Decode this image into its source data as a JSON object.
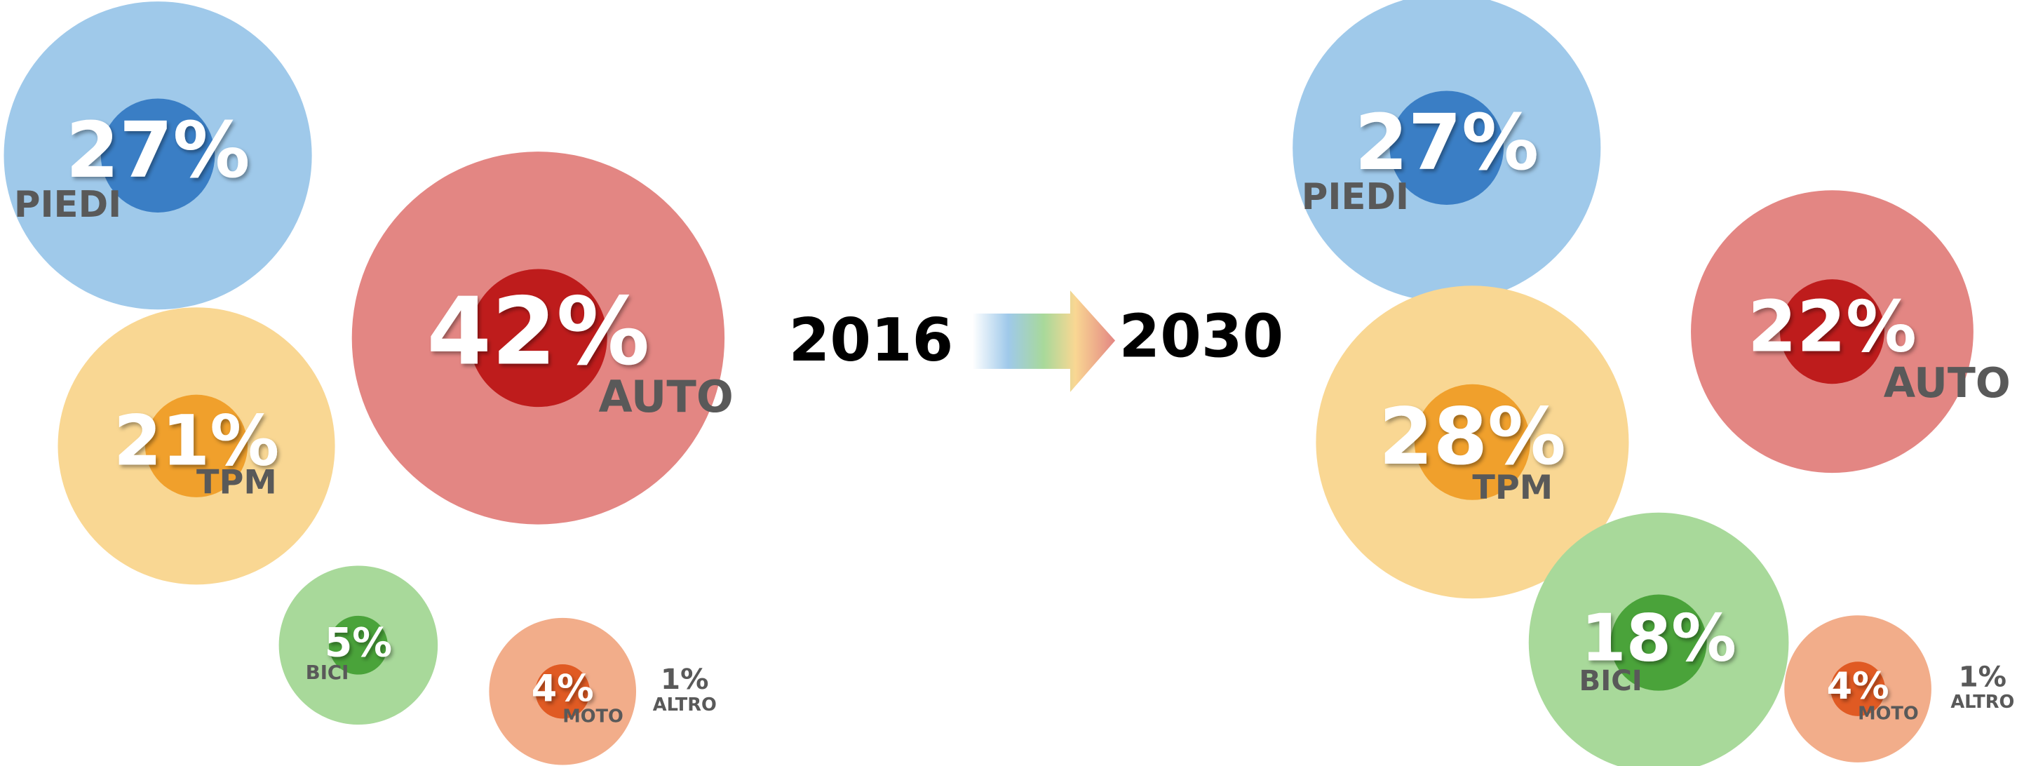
{
  "chart_data": [
    {
      "type": "bubble",
      "title": "2016",
      "categories": [
        "PIEDI",
        "AUTO",
        "TPM",
        "BICI",
        "MOTO",
        "ALTRO"
      ],
      "values": [
        27,
        42,
        21,
        5,
        4,
        1
      ],
      "value_labels": [
        "27%",
        "42%",
        "21%",
        "5%",
        "4%",
        "1%"
      ],
      "colors": [
        "#9fc9ea",
        "#e38683",
        "#f9d793",
        "#a8d99a",
        "#f2ad8a",
        "#595959"
      ],
      "core_colors": [
        "#3a7ec5",
        "#be1c1c",
        "#f0a02c",
        "#4aa33a",
        "#e05a23",
        "#595959"
      ]
    },
    {
      "type": "bubble",
      "title": "2030",
      "categories": [
        "PIEDI",
        "AUTO",
        "TPM",
        "BICI",
        "MOTO",
        "ALTRO"
      ],
      "values": [
        27,
        22,
        28,
        18,
        4,
        1
      ],
      "value_labels": [
        "27%",
        "22%",
        "28%",
        "18%",
        "4%",
        "1%"
      ],
      "colors": [
        "#9fc9ea",
        "#e38683",
        "#f9d793",
        "#a8d99a",
        "#f2ad8a",
        "#595959"
      ],
      "core_colors": [
        "#3a7ec5",
        "#be1c1c",
        "#f0a02c",
        "#4aa33a",
        "#e05a23",
        "#595959"
      ]
    }
  ]
}
